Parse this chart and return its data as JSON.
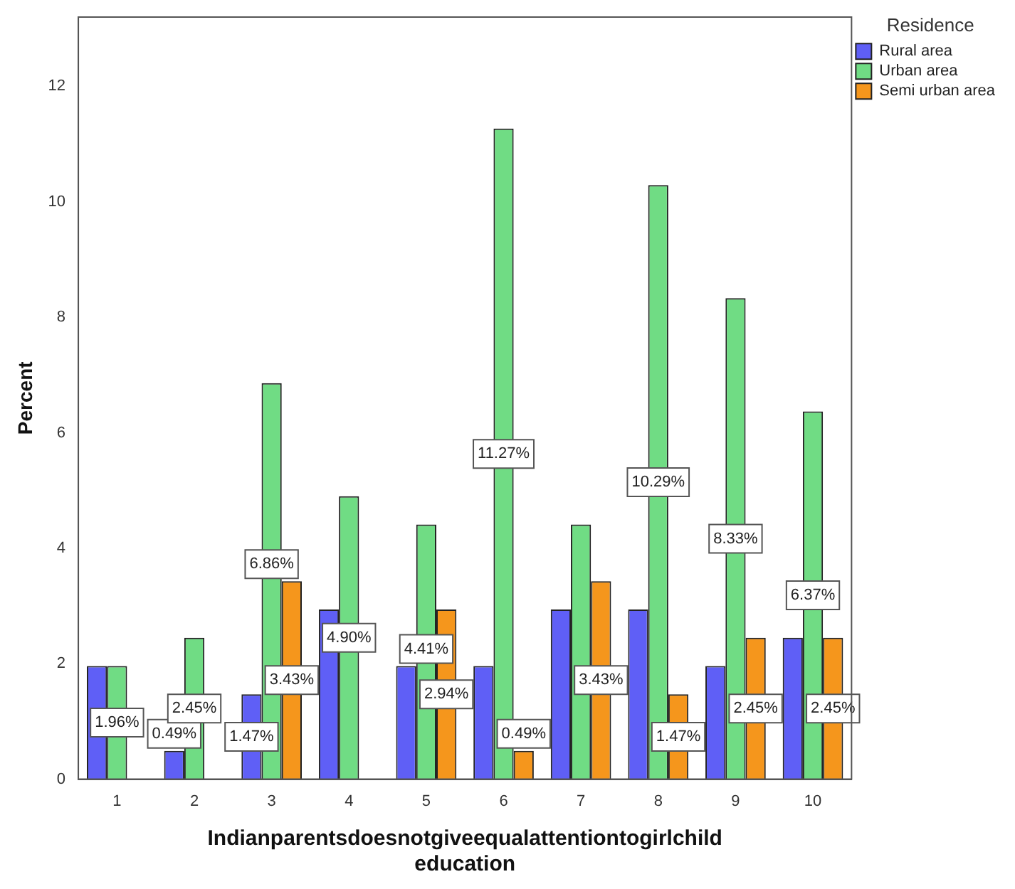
{
  "chart_data": {
    "type": "bar",
    "categories": [
      "1",
      "2",
      "3",
      "4",
      "5",
      "6",
      "7",
      "8",
      "9",
      "10"
    ],
    "xlabel": "Indianparentsdoesnotgiveequalattentiontogirlchild education",
    "ylabel": "Percent",
    "legend_title": "Residence",
    "legend": "top right",
    "ylim": [
      0,
      13.2
    ],
    "yticks": [
      0,
      2,
      4,
      6,
      8,
      10,
      12
    ],
    "grid": false,
    "series": [
      {
        "name": "Rural area",
        "color": "#5f5ff6",
        "values": [
          1.96,
          0.49,
          1.47,
          2.94,
          1.96,
          1.96,
          2.94,
          2.94,
          1.96,
          2.45
        ],
        "value_labels": [
          null,
          "0.49%",
          "1.47%",
          null,
          null,
          null,
          null,
          null,
          null,
          null
        ]
      },
      {
        "name": "Urban area",
        "color": "#70dc84",
        "values": [
          1.96,
          2.45,
          6.86,
          4.9,
          4.41,
          11.27,
          4.41,
          10.29,
          8.33,
          6.37
        ],
        "value_labels": [
          "1.96%",
          "2.45%",
          "6.86%",
          "4.90%",
          "4.41%",
          "11.27%",
          null,
          "10.29%",
          "8.33%",
          "6.37%"
        ]
      },
      {
        "name": "Semi urban area",
        "color": "#f5961c",
        "values": [
          null,
          null,
          3.43,
          null,
          2.94,
          0.49,
          3.43,
          1.47,
          2.45,
          2.45
        ],
        "value_labels": [
          null,
          null,
          "3.43%",
          null,
          "2.94%",
          "0.49%",
          "3.43%",
          "1.47%",
          "2.45%",
          "2.45%"
        ]
      }
    ]
  }
}
